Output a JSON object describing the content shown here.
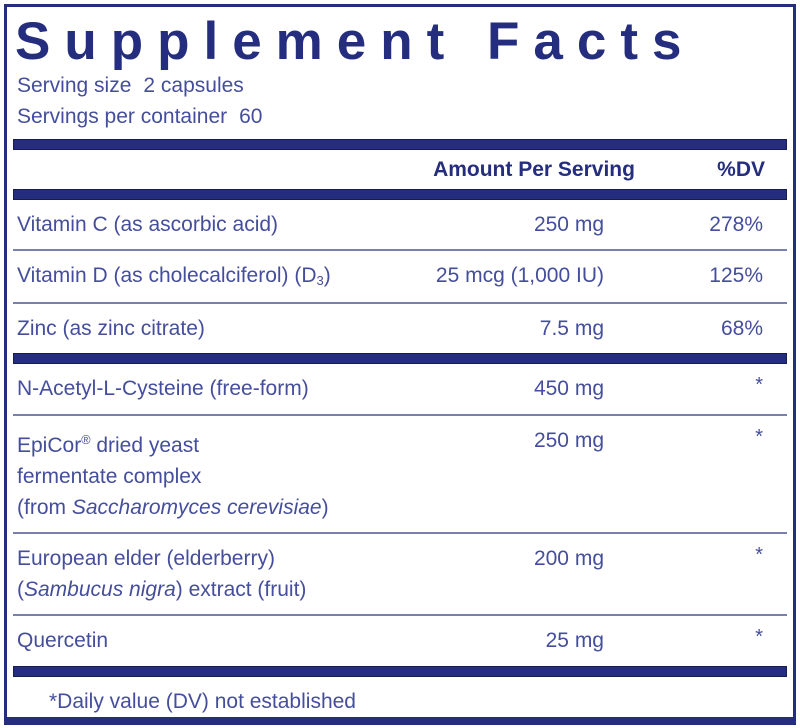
{
  "label": {
    "title": "Supplement Facts",
    "serving_size_label": "Serving size",
    "serving_size_value": "2 capsules",
    "servings_per_container_label": "Servings per container",
    "servings_per_container_value": "60",
    "columns": {
      "amount_header": "Amount Per Serving",
      "dv_header": "%DV"
    },
    "groups": [
      {
        "rows": [
          {
            "name": [
              {
                "t": "Vitamin C (as ascorbic acid)"
              }
            ],
            "amount": "250 mg",
            "dv": "278%"
          },
          {
            "name": [
              {
                "t": "Vitamin D (as cholecalciferol) (D"
              },
              {
                "t": "3",
                "style": "sub"
              },
              {
                "t": ")"
              }
            ],
            "amount": "25 mcg (1,000 IU)",
            "dv": "125%"
          },
          {
            "name": [
              {
                "t": "Zinc (as zinc citrate)"
              }
            ],
            "amount": "7.5 mg",
            "dv": "68%"
          }
        ]
      },
      {
        "rows": [
          {
            "name": [
              {
                "t": "N-Acetyl-L-Cysteine (free-form)"
              }
            ],
            "amount": "450 mg",
            "dv": "*"
          },
          {
            "name": [
              {
                "t": "EpiCor"
              },
              {
                "t": "®",
                "style": "sup"
              },
              {
                "t": " dried yeast"
              },
              {
                "style": "br"
              },
              {
                "t": "fermentate complex"
              },
              {
                "style": "br"
              },
              {
                "t": "(from "
              },
              {
                "t": "Saccharomyces cerevisiae",
                "style": "i"
              },
              {
                "t": ")"
              }
            ],
            "amount": "250 mg",
            "dv": "*"
          },
          {
            "name": [
              {
                "t": "European elder (elderberry)"
              },
              {
                "style": "br"
              },
              {
                "t": "("
              },
              {
                "t": "Sambucus nigra",
                "style": "i"
              },
              {
                "t": ") extract (fruit)"
              }
            ],
            "amount": "200 mg",
            "dv": "*"
          },
          {
            "name": [
              {
                "t": "Quercetin"
              }
            ],
            "amount": "25 mg",
            "dv": "*"
          }
        ]
      }
    ],
    "footnote": "*Daily value (DV) not established",
    "colors": {
      "navy": "#252e7e",
      "body_text": "#454e9c",
      "separator": "#7a80ae"
    }
  }
}
